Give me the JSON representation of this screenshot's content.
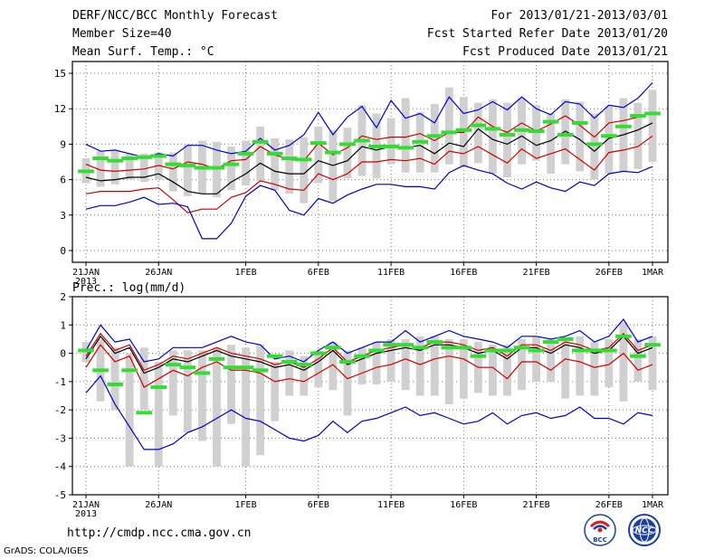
{
  "header": {
    "title": "DERF/NCC/BCC Monthly Forecast",
    "member_size": "Member Size=40",
    "variable": "Mean Surf. Temp.: °C",
    "period": "For 2013/01/21-2013/03/01",
    "started": "Fcst Started Refer Date 2013/01/20",
    "produced": "Fcst Produced Date 2013/01/21"
  },
  "footer": {
    "url": "http://cmdp.ncc.cma.gov.cn",
    "grads": "GrADS: COLA/IGES",
    "logo_bcc": "BCC",
    "logo_ncc": "NCC"
  },
  "colors": {
    "ensemble_range": "#0000cc",
    "quartile": "#cc0000",
    "ensemble_mean": "#000000",
    "member_box": "#d0d0d0",
    "climatology": "#33dd33",
    "grid": "#777777"
  },
  "chart_data": [
    {
      "type": "line",
      "title": "Mean Surf. Temp.: °C",
      "ylim": [
        -1,
        16
      ],
      "yticks": [
        0,
        3,
        6,
        9,
        12,
        15
      ],
      "ytick_labels": [
        "0",
        "3",
        "6",
        "9",
        "12",
        "15"
      ],
      "xticks": [
        0,
        5,
        11,
        16,
        21,
        26,
        31,
        36,
        39
      ],
      "xtick_labels": [
        "21JAN",
        "26JAN",
        "1FEB",
        "6FEB",
        "11FEB",
        "16FEB",
        "21FEB",
        "26FEB",
        "1MAR"
      ],
      "xtick_sublabel": "2013",
      "days": 40,
      "series": [
        {
          "name": "max",
          "values": [
            9.0,
            8.4,
            8.5,
            8.2,
            7.9,
            8.2,
            8.0,
            8.9,
            8.9,
            8.5,
            8.2,
            8.4,
            9.5,
            8.5,
            8.9,
            9.8,
            11.7,
            9.8,
            11.3,
            12.2,
            10.4,
            12.7,
            11.2,
            11.6,
            10.8,
            13.0,
            11.6,
            11.9,
            12.6,
            11.9,
            13.0,
            12.0,
            11.5,
            12.6,
            12.4,
            11.2,
            12.3,
            12.1,
            12.9,
            14.2
          ]
        },
        {
          "name": "q_upper",
          "values": [
            7.3,
            6.8,
            6.7,
            6.8,
            6.9,
            7.2,
            6.9,
            7.5,
            7.3,
            6.9,
            7.6,
            7.7,
            8.8,
            8.1,
            7.7,
            7.6,
            9.1,
            8.1,
            8.7,
            9.7,
            9.4,
            9.6,
            9.6,
            9.9,
            9.3,
            10.0,
            10.0,
            11.3,
            10.5,
            10.0,
            10.8,
            10.1,
            10.7,
            11.4,
            10.6,
            9.6,
            10.8,
            11.0,
            11.3,
            11.7
          ]
        },
        {
          "name": "mean",
          "values": [
            6.2,
            5.9,
            6.0,
            6.2,
            6.2,
            6.5,
            5.8,
            5.0,
            4.8,
            4.8,
            5.8,
            6.5,
            7.4,
            6.7,
            6.5,
            6.5,
            7.6,
            7.2,
            7.6,
            8.8,
            8.5,
            8.8,
            8.7,
            8.9,
            8.2,
            9.1,
            8.8,
            10.3,
            9.4,
            9.0,
            9.7,
            8.9,
            9.3,
            10.1,
            9.4,
            8.4,
            9.5,
            9.8,
            10.2,
            10.8
          ]
        },
        {
          "name": "q_lower",
          "values": [
            4.8,
            5.0,
            5.0,
            5.0,
            5.2,
            5.3,
            4.3,
            3.2,
            3.5,
            3.5,
            4.5,
            4.9,
            5.9,
            5.6,
            5.2,
            5.1,
            6.5,
            6.0,
            6.5,
            7.5,
            7.5,
            7.7,
            7.6,
            7.8,
            7.3,
            8.4,
            8.2,
            8.8,
            8.1,
            7.4,
            8.6,
            7.8,
            8.2,
            8.6,
            7.7,
            6.8,
            8.3,
            8.5,
            8.8,
            9.7
          ]
        },
        {
          "name": "min",
          "values": [
            3.5,
            3.8,
            3.8,
            4.1,
            4.5,
            3.9,
            4.0,
            3.7,
            1.0,
            1.0,
            2.3,
            4.6,
            5.5,
            5.1,
            3.4,
            3.0,
            4.4,
            4.0,
            4.7,
            5.2,
            5.6,
            5.6,
            5.4,
            5.4,
            5.2,
            6.6,
            7.2,
            6.8,
            6.5,
            5.7,
            5.2,
            5.8,
            5.3,
            5.0,
            5.8,
            5.5,
            6.5,
            6.7,
            6.6,
            7.1
          ]
        }
      ],
      "member_boxes": [
        [
          5.7,
          7.8
        ],
        [
          5.4,
          8.4
        ],
        [
          5.6,
          8.5
        ],
        [
          6.0,
          8.2
        ],
        [
          5.8,
          8.2
        ],
        [
          6.0,
          8.3
        ],
        [
          5.0,
          8.3
        ],
        [
          4.6,
          9.0
        ],
        [
          4.8,
          9.3
        ],
        [
          4.5,
          9.2
        ],
        [
          5.1,
          8.8
        ],
        [
          5.5,
          9.3
        ],
        [
          5.9,
          10.5
        ],
        [
          5.1,
          9.5
        ],
        [
          4.8,
          9.4
        ],
        [
          4.0,
          9.6
        ],
        [
          5.7,
          10.5
        ],
        [
          4.2,
          10.2
        ],
        [
          6.1,
          10.4
        ],
        [
          6.3,
          12.3
        ],
        [
          6.1,
          11.6
        ],
        [
          7.3,
          11.2
        ],
        [
          6.6,
          12.9
        ],
        [
          6.6,
          11.7
        ],
        [
          6.6,
          12.4
        ],
        [
          7.3,
          13.8
        ],
        [
          7.1,
          13.0
        ],
        [
          7.4,
          12.5
        ],
        [
          6.5,
          12.8
        ],
        [
          6.2,
          12.5
        ],
        [
          7.3,
          12.9
        ],
        [
          7.6,
          12.3
        ],
        [
          6.5,
          11.6
        ],
        [
          7.3,
          12.8
        ],
        [
          6.7,
          12.6
        ],
        [
          6.0,
          11.6
        ],
        [
          6.5,
          12.2
        ],
        [
          6.7,
          12.9
        ],
        [
          6.9,
          12.5
        ],
        [
          7.5,
          13.6
        ]
      ],
      "climatology": [
        6.7,
        7.8,
        7.6,
        7.8,
        7.9,
        8.0,
        7.3,
        7.2,
        7.0,
        7.0,
        7.3,
        8.2,
        9.2,
        8.2,
        7.8,
        7.7,
        9.1,
        8.3,
        9.0,
        9.3,
        8.8,
        8.8,
        8.7,
        9.2,
        9.7,
        10.0,
        10.2,
        10.6,
        10.3,
        9.8,
        10.2,
        10.1,
        10.9,
        9.8,
        10.8,
        9.0,
        9.7,
        10.5,
        11.4,
        11.6
      ]
    },
    {
      "type": "line",
      "title": "Prec.: log(mm/d)",
      "ylim": [
        -5,
        2
      ],
      "yticks": [
        -5,
        -4,
        -3,
        -2,
        -1,
        0,
        1,
        2
      ],
      "ytick_labels": [
        "-5",
        "-4",
        "-3",
        "-2",
        "-1",
        "0",
        "1",
        "2"
      ],
      "xticks": [
        0,
        5,
        11,
        16,
        21,
        26,
        31,
        36,
        39
      ],
      "xtick_labels": [
        "21JAN",
        "26JAN",
        "1FEB",
        "6FEB",
        "11FEB",
        "16FEB",
        "21FEB",
        "26FEB",
        "1MAR"
      ],
      "xtick_sublabel": "2013",
      "days": 40,
      "series": [
        {
          "name": "max",
          "values": [
            0.1,
            1.0,
            0.4,
            0.5,
            -0.3,
            -0.2,
            0.2,
            0.2,
            0.2,
            0.4,
            0.6,
            0.4,
            0.3,
            -0.2,
            -0.1,
            -0.3,
            0.1,
            0.4,
            0.0,
            0.2,
            0.4,
            0.4,
            0.8,
            0.4,
            0.6,
            0.8,
            0.6,
            0.5,
            0.4,
            0.2,
            0.6,
            0.6,
            0.5,
            0.6,
            0.8,
            0.4,
            0.6,
            1.2,
            0.4,
            0.6
          ]
        },
        {
          "name": "q_upper",
          "values": [
            -0.1,
            0.7,
            0.1,
            0.3,
            -0.6,
            -0.4,
            -0.1,
            -0.2,
            0.0,
            0.2,
            0.0,
            -0.1,
            -0.2,
            -0.4,
            -0.3,
            -0.5,
            -0.2,
            0.2,
            -0.3,
            -0.1,
            0.1,
            0.2,
            0.3,
            0.2,
            0.4,
            0.4,
            0.3,
            0.1,
            0.2,
            -0.1,
            0.3,
            0.3,
            0.1,
            0.4,
            0.3,
            0.1,
            0.2,
            0.7,
            0.1,
            0.3
          ]
        },
        {
          "name": "mean",
          "values": [
            -0.2,
            0.6,
            0.0,
            0.2,
            -0.7,
            -0.5,
            -0.2,
            -0.3,
            -0.1,
            0.1,
            -0.1,
            -0.2,
            -0.3,
            -0.5,
            -0.4,
            -0.6,
            -0.3,
            0.1,
            -0.4,
            -0.2,
            0.0,
            0.1,
            0.2,
            0.1,
            0.3,
            0.3,
            0.2,
            0.0,
            0.1,
            -0.2,
            0.2,
            0.2,
            0.0,
            0.3,
            0.2,
            0.0,
            0.1,
            0.6,
            0.0,
            0.2
          ]
        },
        {
          "name": "q_lower",
          "values": [
            -0.5,
            0.3,
            -0.3,
            -0.1,
            -1.2,
            -0.9,
            -0.6,
            -0.8,
            -0.5,
            -0.3,
            -0.6,
            -0.6,
            -0.7,
            -1.0,
            -0.9,
            -1.0,
            -0.7,
            -0.4,
            -0.9,
            -0.7,
            -0.5,
            -0.4,
            -0.2,
            -0.4,
            -0.2,
            -0.1,
            -0.2,
            -0.5,
            -0.5,
            -0.9,
            -0.3,
            -0.3,
            -0.6,
            -0.2,
            -0.3,
            -0.5,
            -0.4,
            0.0,
            -0.6,
            -0.4
          ]
        },
        {
          "name": "min",
          "values": [
            -1.4,
            -0.8,
            -1.8,
            -2.6,
            -3.4,
            -3.4,
            -3.2,
            -2.8,
            -2.6,
            -2.3,
            -2.0,
            -2.3,
            -2.4,
            -2.7,
            -3.0,
            -3.1,
            -2.9,
            -2.4,
            -2.8,
            -2.4,
            -2.3,
            -2.1,
            -1.9,
            -2.2,
            -2.1,
            -2.3,
            -2.5,
            -2.4,
            -2.1,
            -2.5,
            -2.2,
            -2.1,
            -2.3,
            -2.2,
            -1.9,
            -2.3,
            -2.3,
            -2.5,
            -2.1,
            -2.2
          ]
        }
      ],
      "member_boxes": [
        [
          -0.3,
          0.4
        ],
        [
          -1.7,
          0.5
        ],
        [
          -2.0,
          0.2
        ],
        [
          -4.0,
          0.0
        ],
        [
          -2.0,
          0.2
        ],
        [
          -4.0,
          -0.3
        ],
        [
          -2.2,
          0.1
        ],
        [
          -2.8,
          0.1
        ],
        [
          -3.1,
          0.1
        ],
        [
          -4.0,
          0.2
        ],
        [
          -2.5,
          0.3
        ],
        [
          -4.0,
          0.2
        ],
        [
          -3.6,
          0.3
        ],
        [
          -2.4,
          -0.3
        ],
        [
          -1.5,
          0.1
        ],
        [
          -1.5,
          -0.1
        ],
        [
          -1.2,
          0.1
        ],
        [
          -1.3,
          0.4
        ],
        [
          -2.2,
          0.1
        ],
        [
          -1.1,
          0.2
        ],
        [
          -1.1,
          0.4
        ],
        [
          -1.0,
          0.5
        ],
        [
          -1.3,
          0.5
        ],
        [
          -1.5,
          0.6
        ],
        [
          -1.5,
          0.6
        ],
        [
          -1.8,
          0.5
        ],
        [
          -1.6,
          0.5
        ],
        [
          -1.4,
          0.4
        ],
        [
          -1.5,
          0.3
        ],
        [
          -1.5,
          0.3
        ],
        [
          -1.3,
          0.5
        ],
        [
          -1.0,
          0.6
        ],
        [
          -1.0,
          0.5
        ],
        [
          -1.6,
          0.5
        ],
        [
          -1.5,
          0.6
        ],
        [
          -1.5,
          0.4
        ],
        [
          -1.2,
          0.5
        ],
        [
          -1.7,
          1.1
        ],
        [
          -1.0,
          0.5
        ],
        [
          -1.3,
          0.6
        ]
      ],
      "climatology": [
        0.1,
        -0.6,
        -1.1,
        -0.6,
        -2.1,
        -1.2,
        -0.4,
        -0.5,
        -0.7,
        -0.2,
        -0.5,
        -0.5,
        -0.6,
        -0.1,
        -0.3,
        -0.4,
        0.0,
        0.2,
        -0.3,
        -0.1,
        0.1,
        0.3,
        0.3,
        0.2,
        0.4,
        0.2,
        0.2,
        -0.1,
        0.1,
        0.1,
        0.2,
        0.1,
        0.4,
        0.5,
        0.1,
        0.1,
        0.1,
        0.6,
        -0.1,
        0.3
      ]
    }
  ]
}
